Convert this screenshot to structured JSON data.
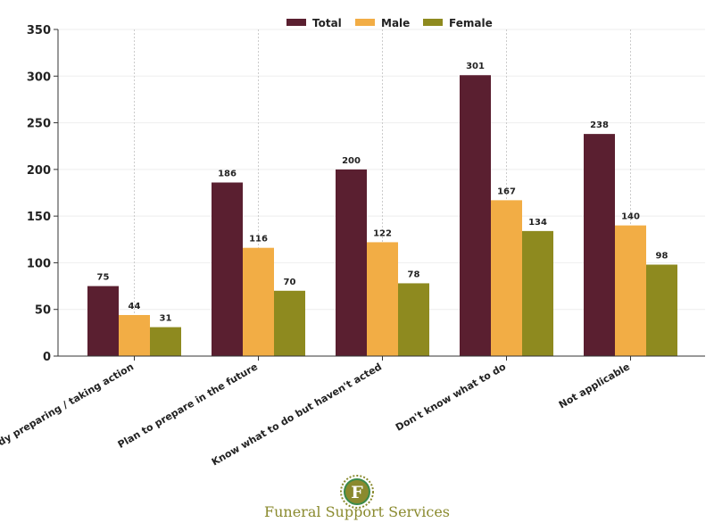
{
  "chart_data": {
    "type": "bar",
    "title": "",
    "xlabel": "",
    "ylabel": "",
    "categories": [
      "Already preparing / taking action",
      "Plan to prepare in the future",
      "Know what to do but haven't acted",
      "Don't know what to do",
      "Not applicable"
    ],
    "series": [
      {
        "name": "Total",
        "color": "#5a1f30",
        "values": [
          75,
          186,
          200,
          301,
          238
        ]
      },
      {
        "name": "Male",
        "color": "#f2ad45",
        "values": [
          44,
          116,
          122,
          167,
          140
        ]
      },
      {
        "name": "Female",
        "color": "#8e8a1f",
        "values": [
          31,
          70,
          78,
          134,
          98
        ]
      }
    ],
    "ylim": [
      0,
      350
    ],
    "yticks": [
      0,
      50,
      100,
      150,
      200,
      250,
      300,
      350
    ],
    "grid": true,
    "legend_position": "top-center"
  },
  "branding": {
    "name": "Funeral Support Services",
    "logo_letter": "F"
  }
}
